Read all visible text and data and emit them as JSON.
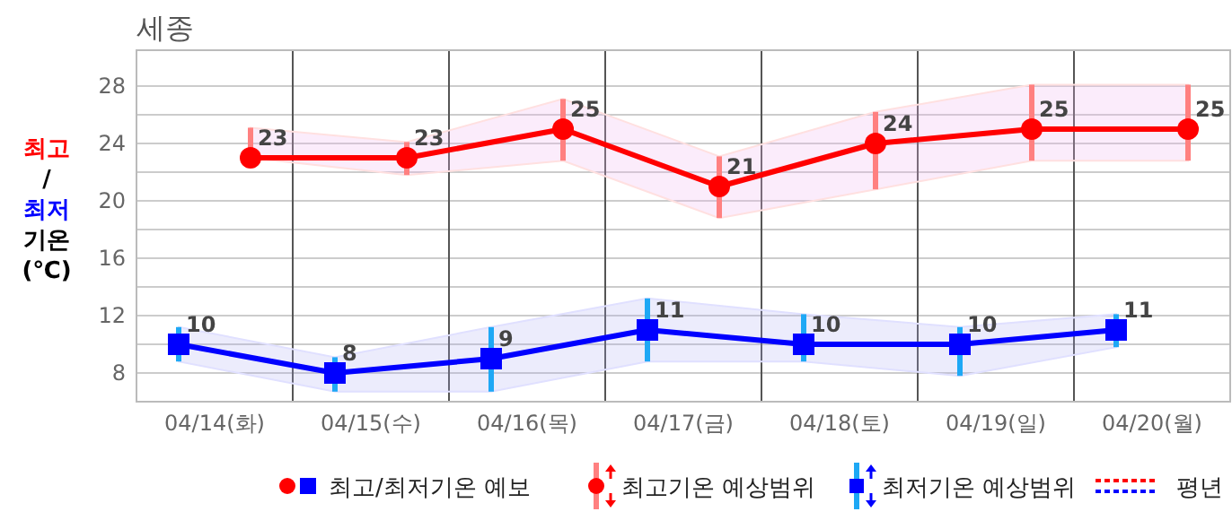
{
  "chart_data": {
    "type": "line",
    "title": "세종",
    "ylabel": "최고/최저 기온 (℃)",
    "categories": [
      "04/14(화)",
      "04/15(수)",
      "04/16(목)",
      "04/17(금)",
      "04/18(토)",
      "04/19(일)",
      "04/20(월)"
    ],
    "series": [
      {
        "color": "#ff0000",
        "marker": "circle",
        "values": [
          23,
          23,
          25,
          21,
          24,
          25,
          25
        ],
        "errors": [
          [
            23,
            25.1
          ],
          [
            21.8,
            24.1
          ],
          [
            22.8,
            27.1
          ],
          [
            18.8,
            23.1
          ],
          [
            20.8,
            26.2
          ],
          [
            22.8,
            28.1
          ],
          [
            22.8,
            28.1
          ]
        ],
        "lower": [
          23,
          21.8,
          22.8,
          18.8,
          20.8,
          22.8,
          22.8
        ],
        "upper": [
          25.1,
          24.1,
          27.1,
          23.1,
          26.2,
          28.1,
          28.1
        ]
      },
      {
        "color": "#0000ff",
        "marker": "square",
        "values": [
          10,
          8,
          9,
          11,
          10,
          10,
          11
        ],
        "errors": [
          [
            8.8,
            11.2
          ],
          [
            6.7,
            9.1
          ],
          [
            6.7,
            11.2
          ],
          [
            8.8,
            13.2
          ],
          [
            8.8,
            12.1
          ],
          [
            7.8,
            11.2
          ],
          [
            9.8,
            12.1
          ]
        ],
        "lower": [
          8.8,
          6.7,
          6.7,
          8.8,
          8.8,
          7.8,
          9.8
        ],
        "upper": [
          11.2,
          9.1,
          11.2,
          13.2,
          12.1,
          11.2,
          12.1
        ]
      }
    ],
    "ylim": [
      6,
      30.5
    ],
    "yticks": [
      8,
      {
        "value": 10,
        "label": null
      },
      12,
      {
        "value": 14,
        "label": null
      },
      16,
      {
        "value": 18,
        "label": null
      },
      20,
      {
        "value": 22,
        "label": null
      },
      24,
      {
        "value": 26,
        "label": null
      },
      28
    ],
    "grid": true,
    "data_labels": true,
    "annotations": [
      "최고/최저기온 예보",
      "최고기온 예상범위",
      "최저기온 예상범위",
      "평년"
    ]
  }
}
